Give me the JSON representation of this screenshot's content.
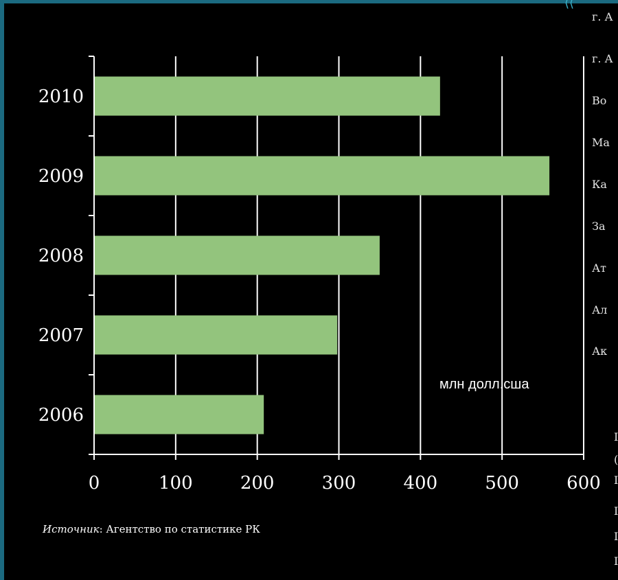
{
  "chart_data": {
    "type": "bar",
    "orientation": "horizontal",
    "categories": [
      "2010",
      "2009",
      "2008",
      "2007",
      "2006"
    ],
    "values": [
      424,
      558,
      350,
      298,
      208
    ],
    "xlim": [
      0,
      600
    ],
    "xticks": [
      "0",
      "100",
      "200",
      "300",
      "400",
      "500",
      "600"
    ],
    "grid": true,
    "bar_color": "#93c47d",
    "unit_label": "млн долл.сша"
  },
  "source": {
    "label": "Источник",
    "text": ": Агентство по статистике РК"
  },
  "side_list": [
    "г. А",
    "г. А",
    "Во",
    "Ма",
    "Ка",
    "За",
    "Ат",
    "Ал",
    "Ак"
  ],
  "side_fragments": [
    "I",
    "(",
    "I",
    "I",
    "I",
    "I"
  ],
  "colors": {
    "background": "#000000",
    "accent_strip": "#1b6a80",
    "grid": "#ffffff"
  }
}
